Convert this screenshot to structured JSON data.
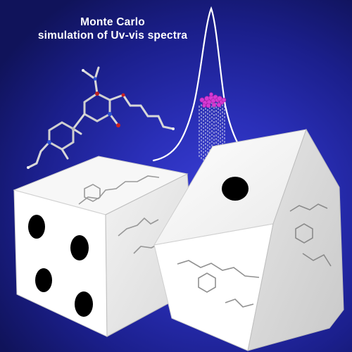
{
  "title": {
    "line1": "Monte Carlo",
    "line2": "simulation of Uv-vis  spectra"
  },
  "colors": {
    "background": "#2a2fb8",
    "spectrum_curve": "#ffffff",
    "sample_points": "#d53ad5",
    "die_face": "#ffffff",
    "die_pip": "#000000"
  },
  "dice": [
    {
      "name": "left-die",
      "front_face_pips": 4
    },
    {
      "name": "right-die",
      "top_face_pips": 1
    }
  ]
}
